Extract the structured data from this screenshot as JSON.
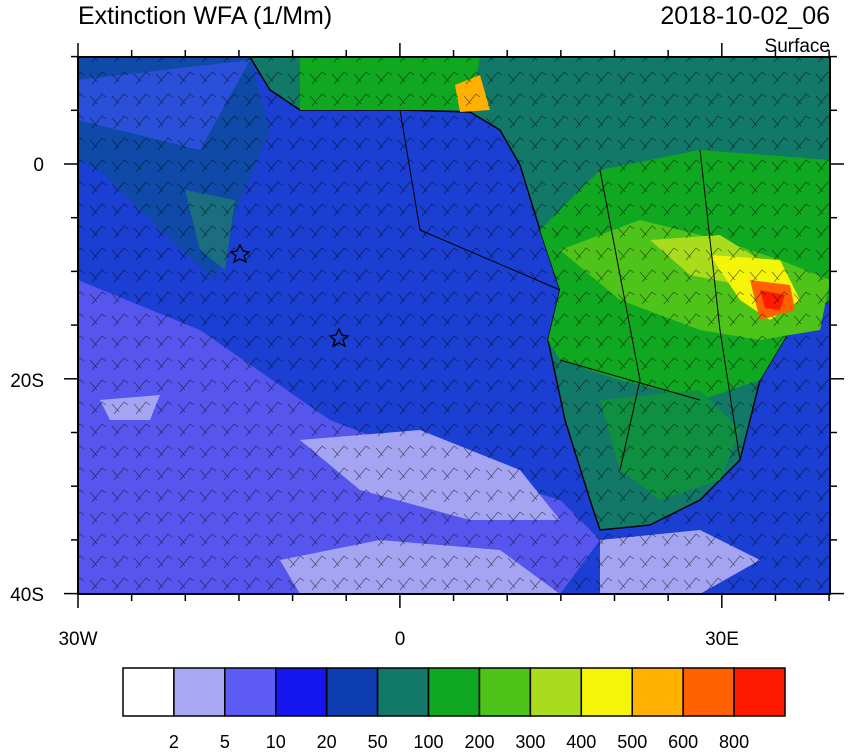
{
  "header": {
    "title": "Extinction WFA (1/Mm)",
    "date": "2018-10-02_06",
    "level": "Surface"
  },
  "axes": {
    "y_labels": [
      "0",
      "20S",
      "40S"
    ],
    "x_labels": [
      "30W",
      "0",
      "30E"
    ]
  },
  "colorbar": {
    "colors": [
      "#ffffff",
      "#a8a8f5",
      "#5c5cf5",
      "#1515f0",
      "#0c3cb0",
      "#127868",
      "#10a820",
      "#4ec41a",
      "#a8dc1c",
      "#f5f50a",
      "#ffb000",
      "#ff6000",
      "#ff1a00"
    ],
    "labels": [
      "2",
      "5",
      "10",
      "20",
      "50",
      "100",
      "200",
      "300",
      "400",
      "500",
      "600",
      "800"
    ]
  }
}
